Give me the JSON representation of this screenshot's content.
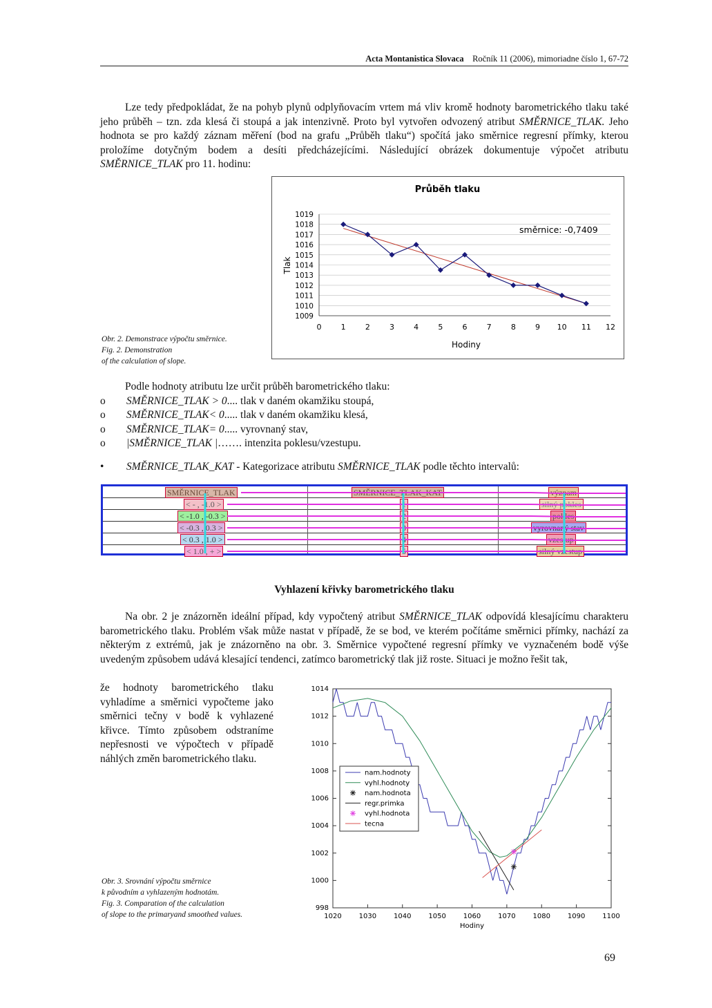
{
  "header": {
    "journal": "Acta Montanistica Slovaca",
    "volume_text": "Ročník 11 (2006), mimoriadne číslo 1, 67-72"
  },
  "para1": {
    "text_a": "Lze tedy předpokládat, že na pohyb plynů odplyňovacím vrtem má vliv kromě hodnoty barometrického tlaku také jeho průběh – tzn. zda klesá či stoupá a jak intenzivně. Proto byl vytvořen odvozený atribut ",
    "attr": "SMĚRNICE_TLAK.",
    "text_b": " Jeho hodnota se pro každý záznam měření (bod na grafu „Průběh tlaku“) spočítá jako směrnice regresní přímky, kterou proložíme dotyčným bodem a desíti předcházejícími. Následující obrázek dokumentuje výpočet atributu ",
    "attr2": "SMĚRNICE_TLAK",
    "text_c": "  pro 11. hodinu:"
  },
  "figure1": {
    "caption_lines": [
      "Obr. 2.  Demonstrace výpočtu směrnice.",
      "Fig. 2.  Demonstration",
      "of the calculation of slope."
    ]
  },
  "list": {
    "intro": "Podle hodnoty atributu lze určit průběh barometrického tlaku:",
    "marker": "o",
    "items": [
      {
        "attr": "SMĚRNICE_TLAK > 0",
        "text": " .... tlak v daném okamžiku stoupá,"
      },
      {
        "attr": "SMĚRNICE_TLAK< 0",
        "text": " ..... tlak v daném okamžiku klesá,"
      },
      {
        "attr": "SMĚRNICE_TLAK= 0",
        "text": " ..... vyrovnaný stav,"
      },
      {
        "attr": "|SMĚRNICE_TLAK |",
        "text": " ……. intenzita poklesu/vzestupu."
      }
    ]
  },
  "bullet": {
    "marker": "•",
    "attr": "SMĚRNICE_TLAK_KAT",
    "text": " - Kategorizace atributu ",
    "attr2": "SMĚRNICE_TLAK",
    "text2": "  podle těchto intervalů:"
  },
  "table": {
    "headers": [
      "SMĚRNICE_TLAK",
      "SMĚRNICE_TLAK_KAT",
      "význam"
    ],
    "rows": [
      [
        "< - , -1.0 >",
        "1",
        "silný pokles"
      ],
      [
        "< -1.0 , -0.3 >",
        "2",
        "pokles"
      ],
      [
        "< -0.3 , 0.3 >",
        "3",
        "vyrovnaný stav"
      ],
      [
        "< 0.3 , 1.0 >",
        "4",
        "vzestup"
      ],
      [
        "< 1.0 , + >",
        "5",
        "silný vzestup"
      ]
    ]
  },
  "section_title": "Vyhlazení křivky barometrického tlaku",
  "para2": {
    "text_a": "Na obr. 2 je znázorněn ideální případ, kdy vypočtený atribut ",
    "attr": "SMĚRNICE_TLAK",
    "text_b": " odpovídá klesajícímu charakteru barometrického tlaku. Problém však může nastat v případě, že se bod, ve kterém počítáme směrnici přímky, nachází za některým z extrémů, jak je znázorněno na obr. 3. Směrnice vypočtené regresní přímky ve vyznačeném bodě výše uvedeným způsobem udává klesající tendenci, zatímco barometrický tlak již roste. Situaci je možno řešit tak,",
    "side_text": "že hodnoty barometrického tlaku vyhladíme a směrnici vypočteme jako směrnici tečny v bodě k vyhlazené křivce. Tímto způsobem odstraníme nepřesnosti ve výpočtech v případě náhlých změn barometrického tlaku."
  },
  "figure2": {
    "caption_lines": [
      "Obr. 3.  Srovnání výpočtu směrnice",
      "k původním a vyhlazeným hodnotám.",
      "Fig. 3.  Comparation of the calculation",
      "of slope to the primaryand smoothed values."
    ]
  },
  "page_number": "69",
  "chart_data": [
    {
      "type": "line",
      "title": "Průběh tlaku",
      "xlabel": "Hodiny",
      "ylabel": "Tlak",
      "xlim": [
        0,
        12
      ],
      "ylim": [
        1009,
        1019
      ],
      "x_ticks": [
        0,
        1,
        2,
        3,
        4,
        5,
        6,
        7,
        8,
        9,
        10,
        11,
        12
      ],
      "y_ticks": [
        1009,
        1010,
        1011,
        1012,
        1013,
        1014,
        1015,
        1016,
        1017,
        1018,
        1019
      ],
      "annotation": "směrnice: -0,7409",
      "series": [
        {
          "x": [
            1,
            2,
            3,
            4,
            5,
            6,
            7,
            8,
            9,
            10,
            11
          ],
          "values": [
            1018,
            1017,
            1015,
            1016,
            1013.5,
            1015,
            1013,
            1012,
            1012,
            1011,
            1010.2
          ],
          "color": "#1a1a7a"
        }
      ],
      "trend": {
        "slope": -0.7409,
        "x": [
          1,
          11
        ],
        "values": [
          1017.6,
          1010.2
        ],
        "color": "#c0392b"
      },
      "grid": true
    },
    {
      "type": "line",
      "xlabel": "Hodiny",
      "ylabel": "Tlak",
      "xlim": [
        1020,
        1100
      ],
      "ylim": [
        998,
        1014
      ],
      "x_ticks": [
        1020,
        1030,
        1040,
        1050,
        1060,
        1070,
        1080,
        1090,
        1100
      ],
      "y_ticks": [
        998,
        1000,
        1002,
        1004,
        1006,
        1008,
        1010,
        1012,
        1014
      ],
      "legend": [
        "nam.hodnoty",
        "vyhl.hodnoty",
        "nam.hodnota",
        "regr.primka",
        "vyhl.hodnota",
        "tecna"
      ],
      "series": [
        {
          "name": "nam.hodnoty",
          "color": "#3b3bb0",
          "x": [
            1020,
            1021,
            1022,
            1023,
            1024,
            1025,
            1026,
            1027,
            1028,
            1029,
            1030,
            1031,
            1032,
            1033,
            1034,
            1035,
            1036,
            1037,
            1038,
            1039,
            1040,
            1041,
            1042,
            1043,
            1044,
            1045,
            1046,
            1047,
            1048,
            1049,
            1050,
            1051,
            1052,
            1053,
            1054,
            1055,
            1056,
            1057,
            1058,
            1059,
            1060,
            1061,
            1062,
            1063,
            1064,
            1065,
            1066,
            1067,
            1068,
            1069,
            1070,
            1071,
            1072,
            1073,
            1074,
            1075,
            1076,
            1077,
            1078,
            1079,
            1080,
            1081,
            1082,
            1083,
            1084,
            1085,
            1086,
            1087,
            1088,
            1089,
            1090,
            1091,
            1092,
            1093,
            1094,
            1095,
            1096,
            1097,
            1098,
            1099,
            1100
          ],
          "values": [
            1013,
            1014,
            1013,
            1013,
            1012,
            1012,
            1012,
            1013,
            1012,
            1012,
            1012,
            1013,
            1013,
            1012,
            1012,
            1011,
            1011,
            1011,
            1010,
            1010,
            1010,
            1009,
            1009,
            1008,
            1007,
            1007,
            1006,
            1006,
            1005,
            1005,
            1005,
            1005,
            1005,
            1004,
            1004,
            1004,
            1004,
            1005,
            1004,
            1004,
            1003,
            1003,
            1002,
            1002,
            1002,
            1001,
            1000,
            1001,
            1000,
            1000,
            999,
            1000,
            1001,
            1002,
            1002,
            1003,
            1003,
            1004,
            1004,
            1005,
            1005,
            1006,
            1006,
            1007,
            1007,
            1008,
            1008,
            1009,
            1009,
            1010,
            1010,
            1011,
            1011,
            1012,
            1011,
            1012,
            1012,
            1011,
            1012,
            1013,
            1013
          ]
        },
        {
          "name": "vyhl.hodnoty",
          "color": "#2e8b57",
          "x": [
            1020,
            1025,
            1030,
            1035,
            1040,
            1045,
            1050,
            1055,
            1060,
            1065,
            1068,
            1070,
            1075,
            1080,
            1085,
            1090,
            1095,
            1100
          ],
          "values": [
            1012.6,
            1013.1,
            1013.3,
            1013.0,
            1012.0,
            1010.2,
            1008.0,
            1005.8,
            1003.6,
            1002.1,
            1001.7,
            1001.8,
            1002.8,
            1004.6,
            1006.8,
            1009.0,
            1011.0,
            1012.6
          ]
        },
        {
          "name": "nam.hodnota",
          "x": [
            1072
          ],
          "values": [
            1001
          ]
        },
        {
          "name": "regr.primka",
          "color": "#222",
          "x": [
            1062,
            1072
          ],
          "values": [
            1003.6,
            999.3
          ]
        },
        {
          "name": "vyhl.hodnota",
          "x": [
            1072
          ],
          "values": [
            1002.1
          ]
        },
        {
          "name": "tecna",
          "color": "#d9534f",
          "x": [
            1063,
            1080
          ],
          "values": [
            1000.2,
            1003.7
          ]
        }
      ],
      "grid": false
    }
  ]
}
